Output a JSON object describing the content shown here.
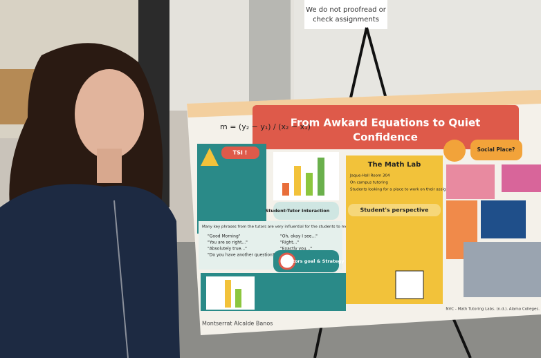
{
  "sign": {
    "text_1": "We do not proofread or",
    "text_2": "check assignments"
  },
  "poster": {
    "equation": "m = (y₂ − y₁) / (x₂ − x₁)",
    "title_1": "From Awkard Equations to Quiet",
    "title_2": "Confidence",
    "tsi": "TSI !",
    "interaction": "Student-Tutor Interaction",
    "phrases_intro": "Many key phrases from the tutors are very influential for the students to move forward:",
    "phrases": [
      "\"Good Morning\"",
      "\"You are so right...\"",
      "\"Absolutely true...\"",
      "\"Do you have another question?\"",
      "\"Oh, okay I see...\"",
      "\"Right...\"",
      "\"Exactly you...\""
    ],
    "strategy": "Tutors goal & Strategy",
    "math_lab": "The Math Lab",
    "math_lab_items": [
      "Jaque-Hall Room 304",
      "On campus tutoring",
      "Students looking for a place to work on their assignments"
    ],
    "perspective": "Student's perspective",
    "social": "Social Place?",
    "author": "Montserrat Alcalde Banos",
    "citation": "NVC - Math Tutoring Labs. (n.d.). Alamo Colleges."
  }
}
